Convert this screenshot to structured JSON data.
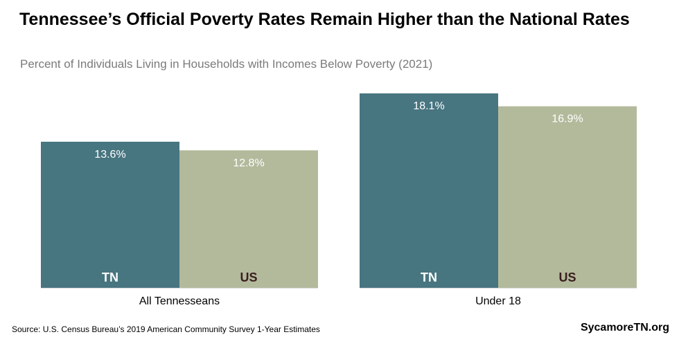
{
  "title": "Tennessee’s Official Poverty Rates Remain Higher than the National Rates",
  "subtitle": "Percent of Individuals Living in Households with Incomes Below Poverty (2021)",
  "source": "Source: U.S. Census Bureau’s 2019 American Community Survey 1-Year Estimates",
  "brand": "SycamoreTN.org",
  "colors": {
    "TN": "#477580",
    "US": "#b3ba9c",
    "TN_label": "#ffffff",
    "US_label": "#3a1e1e"
  },
  "chart_data": {
    "type": "bar",
    "categories": [
      "All Tennesseans",
      "Under 18"
    ],
    "series": [
      {
        "name": "TN",
        "values": [
          13.6,
          18.1
        ],
        "labels": [
          "13.6%",
          "18.1%"
        ]
      },
      {
        "name": "US",
        "values": [
          12.8,
          16.9
        ],
        "labels": [
          "12.8%",
          "16.9%"
        ]
      }
    ],
    "ylim": [
      0,
      18.1
    ],
    "grid": false
  }
}
